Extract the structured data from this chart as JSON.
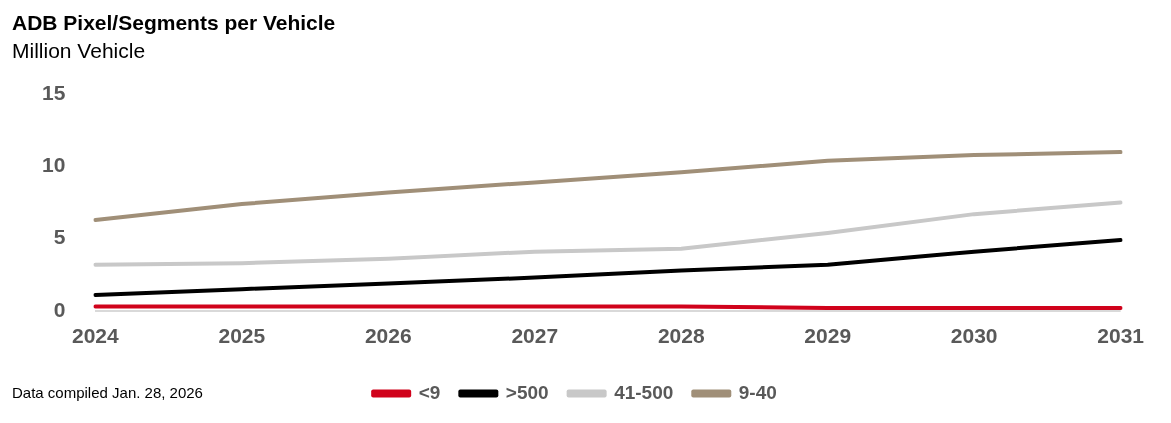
{
  "chart_data": {
    "type": "line",
    "title": "ADB Pixel/Segments per Vehicle",
    "subtitle": "Million Vehicle",
    "categories": [
      "2024",
      "2025",
      "2026",
      "2027",
      "2028",
      "2029",
      "2030",
      "2031"
    ],
    "series": [
      {
        "name": "<9",
        "color": "#d0021b",
        "values": [
          0.3,
          0.3,
          0.3,
          0.3,
          0.3,
          0.2,
          0.2,
          0.2
        ]
      },
      {
        "name": ">500",
        "color": "#000000",
        "values": [
          1.1,
          1.5,
          1.9,
          2.3,
          2.8,
          3.2,
          4.1,
          4.9
        ]
      },
      {
        "name": "41-500",
        "color": "#c8c8c8",
        "values": [
          3.2,
          3.3,
          3.6,
          4.1,
          4.3,
          5.4,
          6.7,
          7.5
        ]
      },
      {
        "name": "9-40",
        "color": "#a08f78",
        "values": [
          6.3,
          7.4,
          8.2,
          8.9,
          9.6,
          10.4,
          10.8,
          11.0
        ]
      }
    ],
    "ylim": [
      0,
      15
    ],
    "yticks": [
      0,
      5,
      10,
      15
    ],
    "grid": false,
    "legend": "bottom",
    "marker": "none",
    "line_style": "solid",
    "annotations": [
      "Data compiled Jan. 28, 2026"
    ]
  }
}
